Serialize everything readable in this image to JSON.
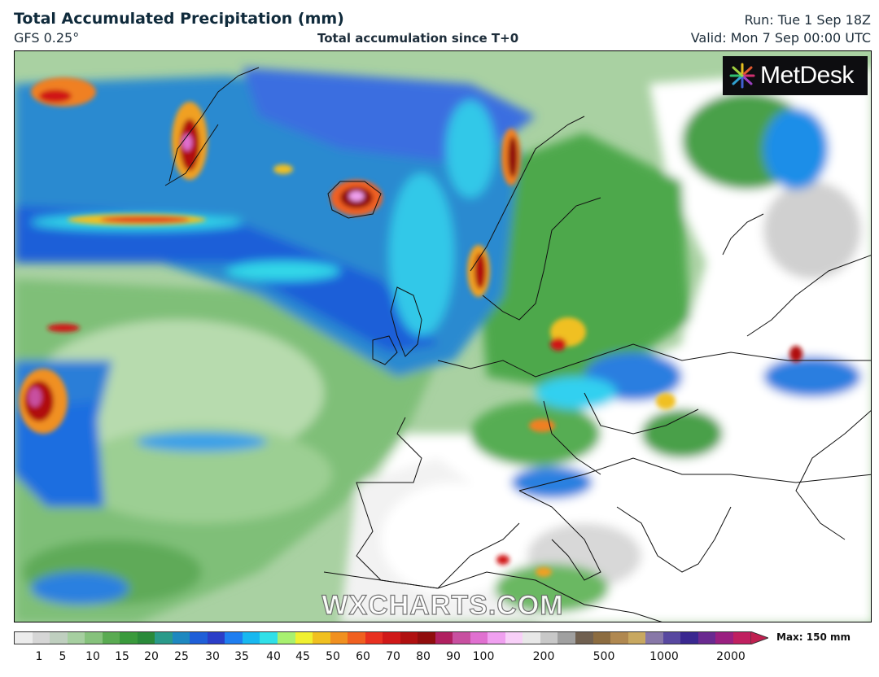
{
  "header": {
    "title": "Total Accumulated Precipitation (mm)",
    "model": "GFS 0.25°",
    "subtitle": "Total accumulation since T+0",
    "run": "Run: Tue 1 Sep 18Z",
    "valid": "Valid: Mon 7 Sep 00:00 UTC"
  },
  "logo": {
    "text": "MetDesk"
  },
  "watermark": "WXCHARTS.COM",
  "legend": {
    "ticks": [
      "1",
      "5",
      "10",
      "15",
      "20",
      "25",
      "30",
      "35",
      "40",
      "45",
      "50",
      "60",
      "70",
      "80",
      "90",
      "100",
      "200",
      "500",
      "1000",
      "2000"
    ],
    "max_label": "Max: 150 mm",
    "colors": [
      "#ececec",
      "#d6d6d6",
      "#bfcfbf",
      "#a6cfa0",
      "#86c27c",
      "#5aab52",
      "#3a9a3c",
      "#2a8a3a",
      "#2a9a8a",
      "#1e88c0",
      "#1f5fd8",
      "#2b3ec8",
      "#1f7ef0",
      "#18b8f0",
      "#30e0e8",
      "#a8f070",
      "#f0f030",
      "#f0c020",
      "#f09020",
      "#f06020",
      "#e83020",
      "#d01818",
      "#b01010",
      "#900d0d",
      "#b02060",
      "#c850a0",
      "#e070d0",
      "#f0a0f0",
      "#f8d0f8",
      "#e8e8e8",
      "#c8c8c8",
      "#a0a0a0",
      "#706050",
      "#8c6c40",
      "#b08850",
      "#c8a860",
      "#8878a8",
      "#5848a0",
      "#3a2890",
      "#6a2a90",
      "#9a2080",
      "#c02060"
    ]
  }
}
